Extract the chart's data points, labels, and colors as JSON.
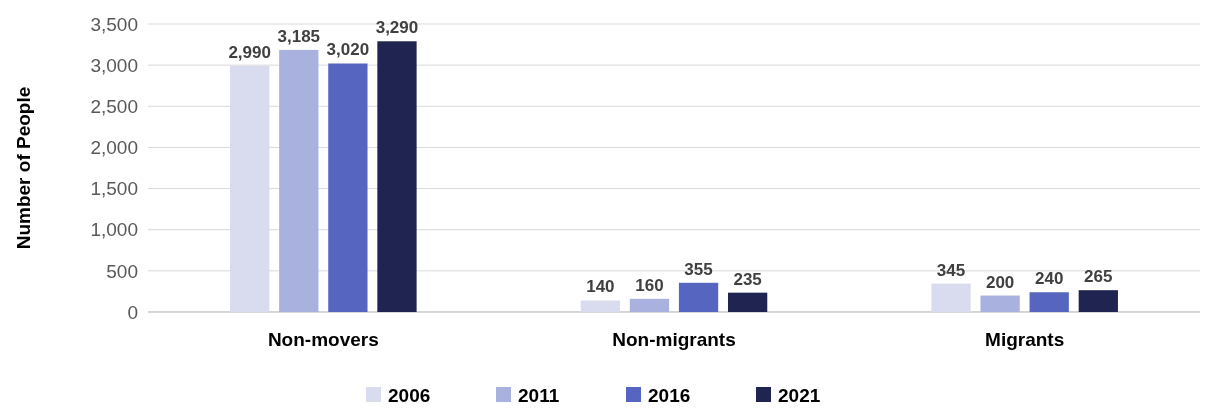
{
  "chart_data": {
    "type": "bar",
    "ylabel": "Number of People",
    "categories": [
      "Non-movers",
      "Non-migrants",
      "Migrants"
    ],
    "series": [
      {
        "name": "2006",
        "color": "#d9dcef",
        "values": [
          2990,
          140,
          345
        ],
        "value_labels": [
          "2,990",
          "140",
          "345"
        ]
      },
      {
        "name": "2011",
        "color": "#a9b1de",
        "values": [
          3185,
          160,
          200
        ],
        "value_labels": [
          "3,185",
          "160",
          "200"
        ]
      },
      {
        "name": "2016",
        "color": "#5565c0",
        "values": [
          3020,
          355,
          240
        ],
        "value_labels": [
          "3,020",
          "355",
          "240"
        ]
      },
      {
        "name": "2021",
        "color": "#1f2451",
        "values": [
          3290,
          235,
          265
        ],
        "value_labels": [
          "3,290",
          "235",
          "265"
        ]
      }
    ],
    "ylim": [
      0,
      3500
    ],
    "yticks": [
      {
        "value": 0,
        "label": "0"
      },
      {
        "value": 500,
        "label": "500"
      },
      {
        "value": 1000,
        "label": "1,000"
      },
      {
        "value": 1500,
        "label": "1,500"
      },
      {
        "value": 2000,
        "label": "2,000"
      },
      {
        "value": 2500,
        "label": "2,500"
      },
      {
        "value": 3000,
        "label": "3,000"
      },
      {
        "value": 3500,
        "label": "3,500"
      }
    ],
    "grid": "y",
    "legend": "bottom"
  }
}
